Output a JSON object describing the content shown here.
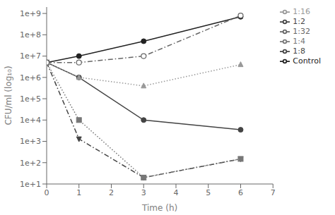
{
  "chart_data": {
    "type": "line",
    "xlabel": "Time (h)",
    "ylabel": "CFU/ml (log₁₀)",
    "x": [
      0,
      1,
      3,
      6
    ],
    "xlim": [
      0,
      7
    ],
    "xticks": [
      0,
      1,
      2,
      3,
      4,
      5,
      6,
      7
    ],
    "ylim": [
      10,
      2000000000
    ],
    "yticks": [
      {
        "value": 10,
        "label": "1e+1"
      },
      {
        "value": 100,
        "label": "1e+2"
      },
      {
        "value": 1000,
        "label": "1e+3"
      },
      {
        "value": 10000,
        "label": "1e+4"
      },
      {
        "value": 100000,
        "label": "1e+5"
      },
      {
        "value": 1000000,
        "label": "1e+6"
      },
      {
        "value": 10000000,
        "label": "1e+7"
      },
      {
        "value": 100000000,
        "label": "1e+8"
      },
      {
        "value": 1000000000,
        "label": "1e+9"
      }
    ],
    "log": "y",
    "grid": false,
    "legend": "upper right",
    "series": [
      {
        "name": "Control",
        "color": "#222222",
        "marker": "circle",
        "line_style": "solid",
        "values": [
          5000000,
          10000000,
          50000000,
          700000000
        ]
      },
      {
        "name": "1:2",
        "color": "#444444",
        "marker": "triangle-down",
        "line_style": "dashdot",
        "values": [
          5000000,
          1300,
          20,
          150
        ]
      },
      {
        "name": "1:4",
        "color": "#777777",
        "marker": "square",
        "line_style": "dotted",
        "values": [
          5000000,
          10000,
          20,
          150
        ]
      },
      {
        "name": "1:8",
        "color": "#444444",
        "marker": "circle",
        "line_style": "solid",
        "values": [
          5000000,
          1000000,
          10000,
          3500
        ]
      },
      {
        "name": "1:16",
        "color": "#999999",
        "marker": "triangle-up",
        "line_style": "dotted",
        "values": [
          5000000,
          1000000,
          400000,
          4000000
        ]
      },
      {
        "name": "1:32",
        "color": "#666666",
        "marker": "open-circle",
        "line_style": "dashdot",
        "values": [
          5000000,
          5000000,
          10000000,
          800000000
        ]
      }
    ]
  }
}
